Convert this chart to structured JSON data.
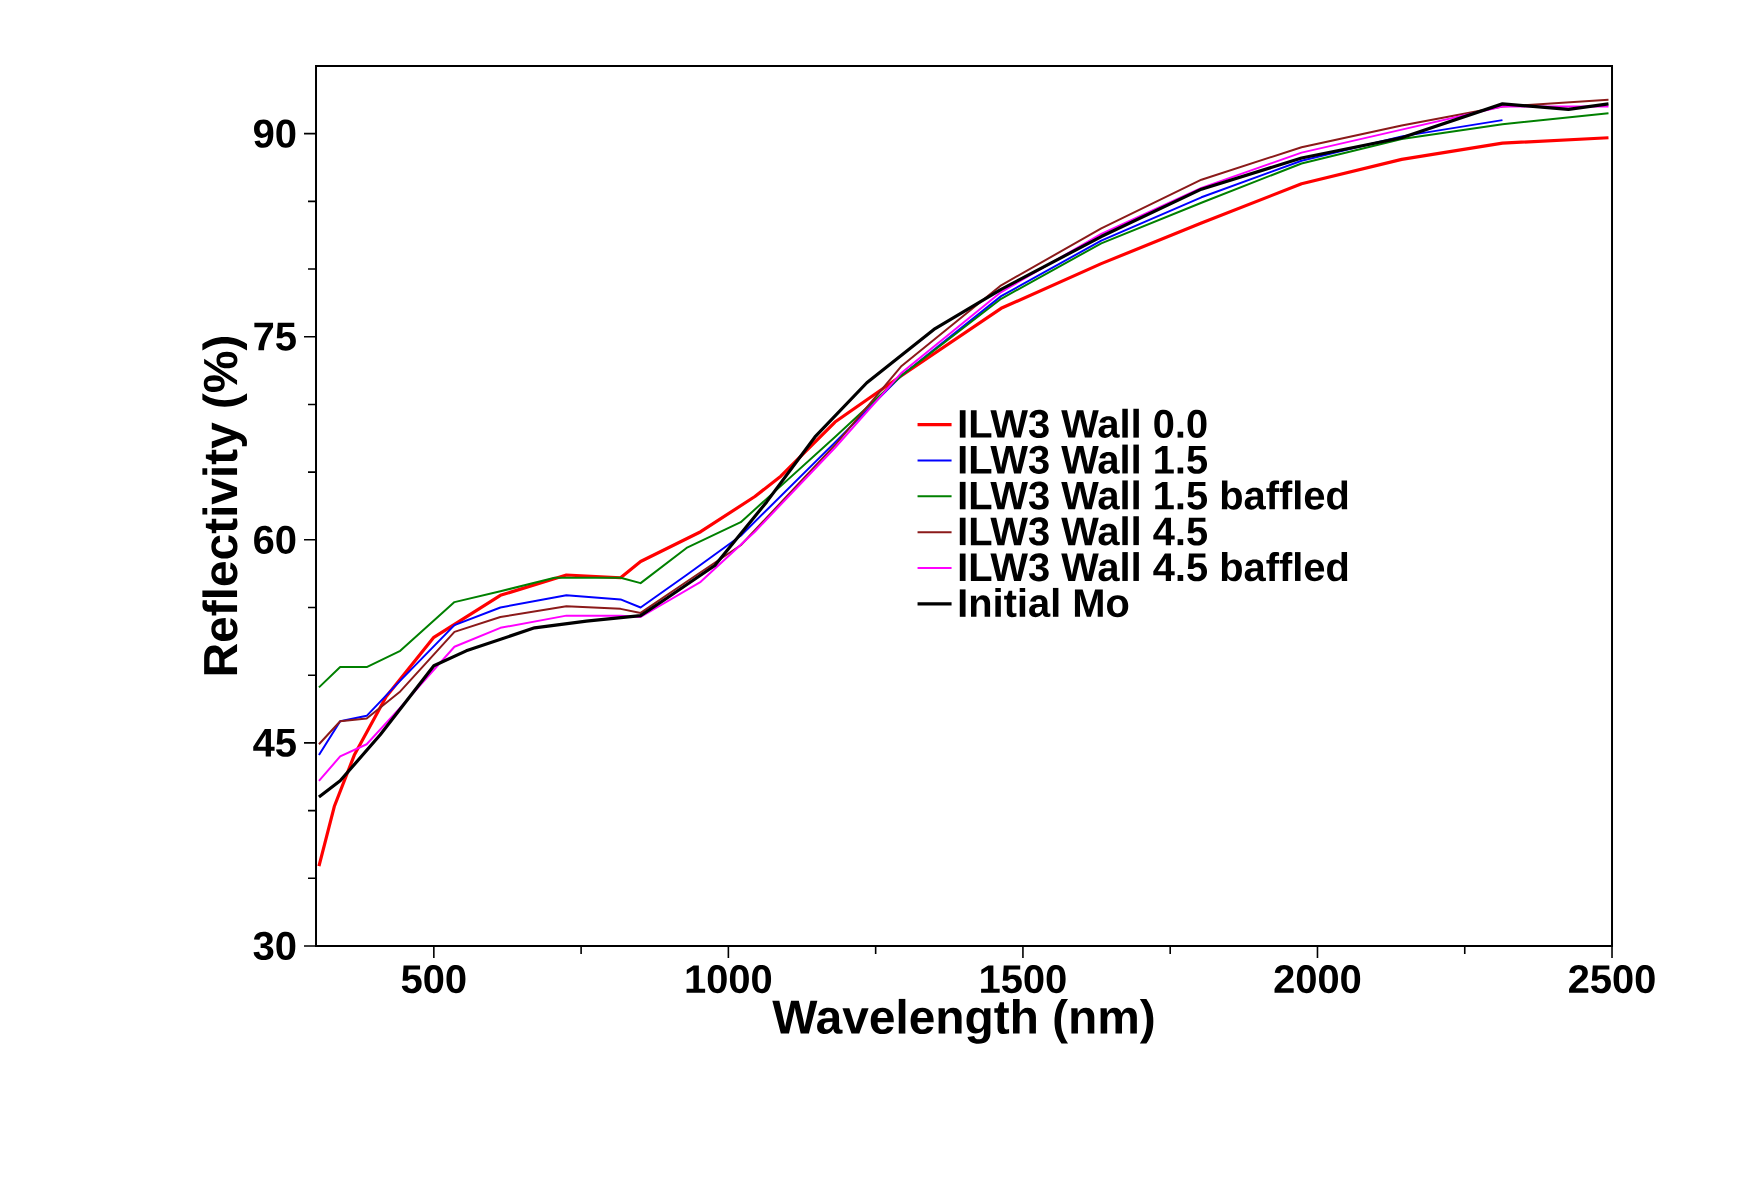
{
  "chart_data": {
    "type": "line",
    "xlabel": "Wavelength (nm)",
    "ylabel": "Reflectivity (%)",
    "xlim": [
      300,
      2500
    ],
    "ylim": [
      30,
      95
    ],
    "xticks": [
      500,
      1000,
      1500,
      2000,
      2500
    ],
    "yticks": [
      30,
      45,
      60,
      75,
      90
    ],
    "grid": false,
    "legend": "right",
    "marker": "none",
    "line_style": "solid",
    "series": [
      {
        "name": "ILW3 Wall 0.0",
        "color": "#ff0000",
        "x": [
          305,
          331,
          365,
          419,
          500,
          613,
          725,
          817,
          851,
          953,
          1045,
          1089,
          1181,
          1293,
          1463,
          1633,
          1803,
          1973,
          2143,
          2314,
          2494
        ],
        "values": [
          35.9,
          40.3,
          44.1,
          48.4,
          52.8,
          55.9,
          57.4,
          57.2,
          58.4,
          60.6,
          63.2,
          64.7,
          68.7,
          72.1,
          77.1,
          80.4,
          83.4,
          86.3,
          88.1,
          89.3,
          89.7
        ]
      },
      {
        "name": "ILW3 Wall 1.5",
        "color": "#0000ff",
        "x": [
          305,
          341,
          386,
          443,
          535,
          613,
          725,
          817,
          851,
          929,
          1021,
          1181,
          1293,
          1463,
          1633,
          1803,
          1973,
          2143,
          2314
        ],
        "values": [
          44.1,
          46.6,
          47.0,
          49.6,
          53.7,
          55.0,
          55.9,
          55.6,
          55.0,
          57.4,
          60.3,
          67.2,
          72.1,
          78.0,
          82.1,
          85.3,
          88.0,
          89.8,
          91.0
        ]
      },
      {
        "name": "ILW3 Wall 1.5 baffled",
        "color": "#008000",
        "x": [
          305,
          341,
          386,
          443,
          535,
          613,
          705,
          817,
          851,
          929,
          1021,
          1181,
          1293,
          1463,
          1633,
          1803,
          1973,
          2143,
          2314,
          2494
        ],
        "values": [
          49.1,
          50.6,
          50.6,
          51.8,
          55.4,
          56.2,
          57.2,
          57.2,
          56.8,
          59.4,
          61.3,
          67.6,
          72.1,
          77.8,
          81.9,
          84.9,
          87.8,
          89.6,
          90.7,
          91.5
        ]
      },
      {
        "name": "ILW3 Wall 4.5",
        "color": "#8b1a1a",
        "x": [
          305,
          341,
          386,
          443,
          535,
          613,
          725,
          817,
          851,
          929,
          1021,
          1181,
          1293,
          1463,
          1633,
          1803,
          1973,
          2143,
          2314,
          2494
        ],
        "values": [
          44.9,
          46.6,
          46.8,
          48.8,
          53.2,
          54.3,
          55.1,
          54.9,
          54.6,
          56.9,
          59.6,
          67.0,
          72.8,
          78.8,
          83.0,
          86.6,
          89.0,
          90.6,
          92.0,
          92.5
        ]
      },
      {
        "name": "ILW3 Wall 4.5 baffled",
        "color": "#ff00ff",
        "x": [
          305,
          341,
          386,
          443,
          535,
          613,
          725,
          817,
          851,
          953,
          1045,
          1181,
          1293,
          1463,
          1633,
          1803,
          1973,
          2143,
          2314,
          2494
        ],
        "values": [
          42.2,
          44.0,
          44.9,
          47.6,
          52.1,
          53.5,
          54.4,
          54.4,
          54.3,
          56.9,
          60.6,
          66.8,
          72.3,
          78.3,
          82.6,
          86.0,
          88.6,
          90.3,
          92.0,
          92.0
        ]
      },
      {
        "name": "Initial Mo",
        "color": "#000000",
        "x": [
          305,
          341,
          409,
          500,
          555,
          671,
          759,
          851,
          896,
          977,
          1065,
          1147,
          1235,
          1351,
          1463,
          1633,
          1803,
          1973,
          2143,
          2314,
          2426,
          2494
        ],
        "values": [
          41.0,
          42.2,
          45.6,
          50.7,
          51.8,
          53.5,
          54.0,
          54.4,
          55.7,
          58.1,
          62.8,
          67.6,
          71.6,
          75.6,
          78.5,
          82.4,
          85.9,
          88.2,
          89.7,
          92.2,
          91.8,
          92.2
        ]
      }
    ]
  }
}
